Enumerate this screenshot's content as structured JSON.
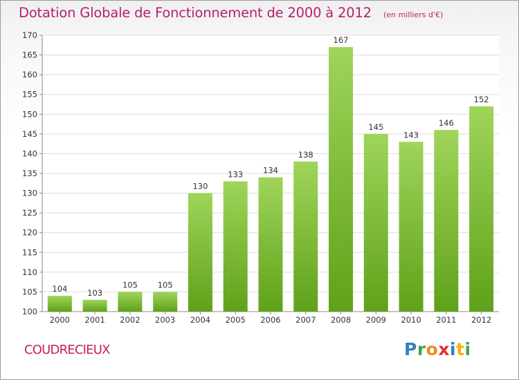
{
  "title": "Dotation Globale de Fonctionnement de 2000 à 2012",
  "unit": "(en milliers d'€)",
  "place": "COUDRECIEUX",
  "logo": {
    "letters": [
      "P",
      "r",
      "o",
      "x",
      "i",
      "t",
      "i"
    ]
  },
  "colors": {
    "title": "#b81f6c",
    "bar_top": "#9fd55a",
    "bar_bottom": "#5fa11a",
    "place": "#c81e5c"
  },
  "chart_data": {
    "type": "bar",
    "categories": [
      "2000",
      "2001",
      "2002",
      "2003",
      "2004",
      "2005",
      "2006",
      "2007",
      "2008",
      "2009",
      "2010",
      "2011",
      "2012"
    ],
    "values": [
      104,
      103,
      105,
      105,
      130,
      133,
      134,
      138,
      167,
      145,
      143,
      146,
      152
    ],
    "title": "Dotation Globale de Fonctionnement de 2000 à 2012",
    "xlabel": "",
    "ylabel": "",
    "ylim": [
      100,
      170
    ],
    "yticks": [
      100,
      105,
      110,
      115,
      120,
      125,
      130,
      135,
      140,
      145,
      150,
      155,
      160,
      165,
      170
    ],
    "grid": true,
    "data_labels": true
  }
}
